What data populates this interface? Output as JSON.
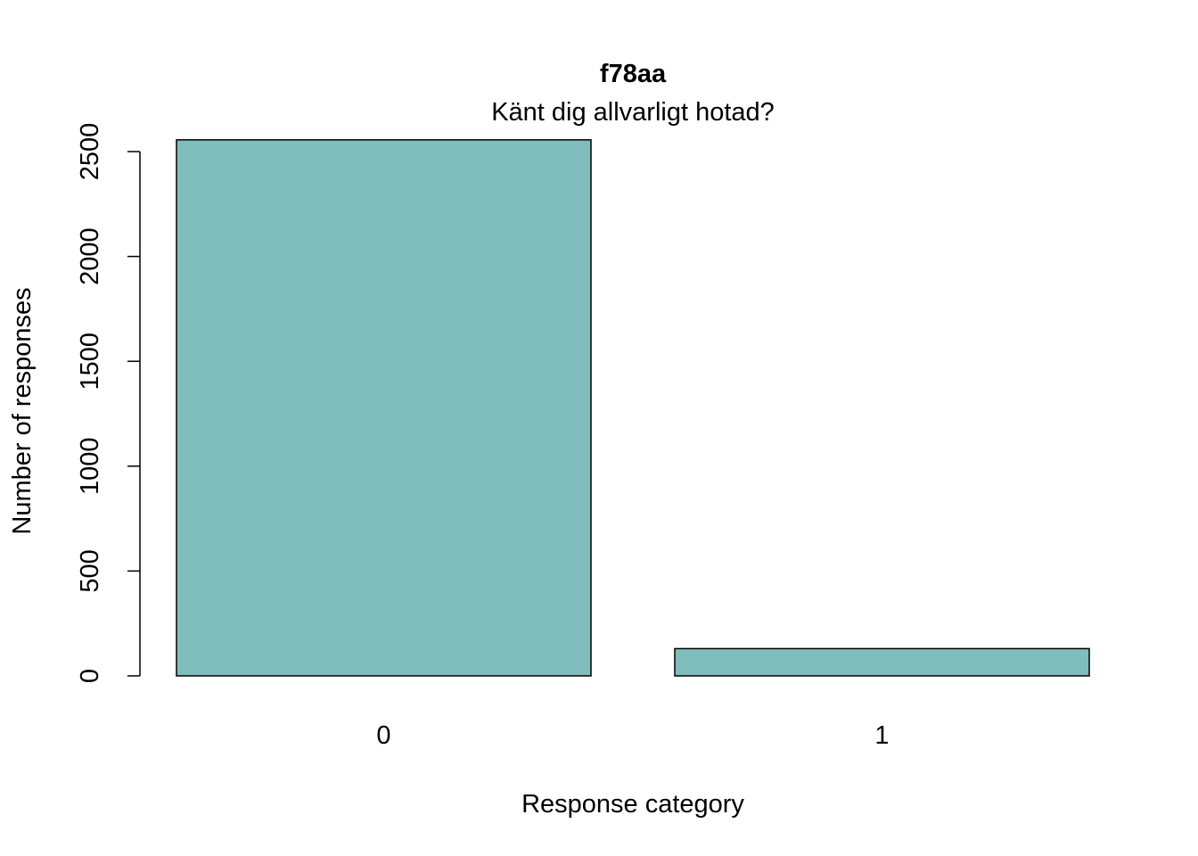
{
  "chart_data": {
    "type": "bar",
    "title": "f78aa",
    "subtitle": "Känt dig allvarligt hotad?",
    "xlabel": "Response category",
    "ylabel": "Number of responses",
    "categories": [
      "0",
      "1"
    ],
    "values": [
      2556,
      130
    ],
    "ylim": [
      0,
      2500
    ],
    "yticks": [
      0,
      500,
      1000,
      1500,
      2000,
      2500
    ],
    "grid": false,
    "legend": "none",
    "bar_color": "#80BDBD",
    "bar_border_color": "#000000"
  }
}
